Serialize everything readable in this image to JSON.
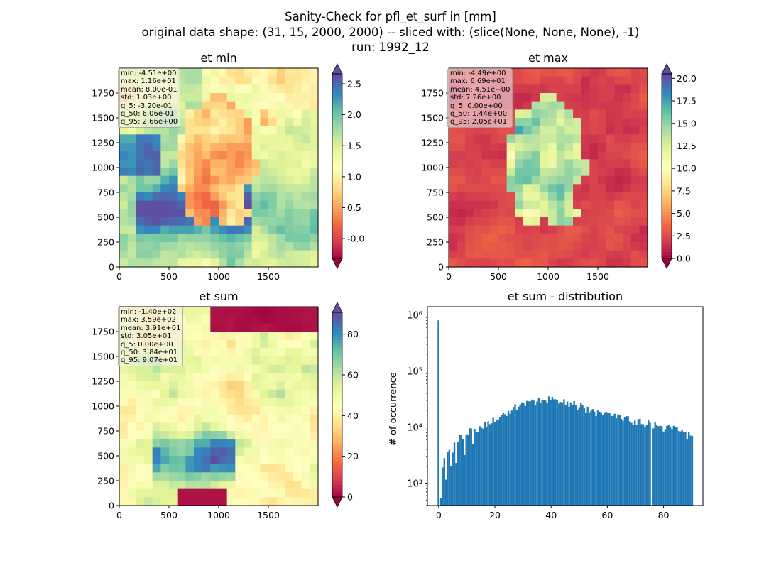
{
  "figure": {
    "title_line1": "Sanity-Check for pfl_et_surf in [mm]",
    "title_line2": "original data shape: (31, 15, 2000, 2000) -- sliced with: (slice(None, None, None), -1)",
    "title_line3": "run: 1992_12"
  },
  "panels": {
    "et_min": {
      "title": "et min",
      "stats": [
        "min: -4.51e+00",
        "max: 1.16e+01",
        "mean: 8.00e-01",
        "std: 1.03e+00",
        "q_5: -3.20e-01",
        "q_50: 6.06e-01",
        "q_95: 2.66e+00"
      ]
    },
    "et_max": {
      "title": "et max",
      "stats": [
        "min: -4.49e+00",
        "max: 6.69e+01",
        "mean: 4.51e+00",
        "std: 7.26e+00",
        "q_5: 0.00e+00",
        "q_50: 1.44e+00",
        "q_95: 2.05e+01"
      ]
    },
    "et_sum": {
      "title": "et sum",
      "stats": [
        "min: -1.40e+02",
        "max: 3.59e+02",
        "mean: 3.91e+01",
        "std: 3.05e+01",
        "q_5: 0.00e+00",
        "q_50: 3.84e+01",
        "q_95: 9.07e+01"
      ]
    },
    "hist": {
      "title": "et sum - distribution",
      "ylabel": "# of occurrence"
    }
  },
  "chart_data": [
    {
      "type": "heatmap",
      "title": "et min",
      "xlim": [
        0,
        2000
      ],
      "ylim": [
        0,
        2000
      ],
      "x_ticks": [
        0,
        500,
        1000,
        1500
      ],
      "y_ticks": [
        0,
        250,
        500,
        750,
        1000,
        1250,
        1500,
        1750
      ],
      "colormap": "Spectral",
      "colorbar": {
        "vmin": -0.32,
        "vmax": 2.66,
        "ticks": [
          "-0.0",
          "0.5",
          "1.0",
          "1.5",
          "2.0",
          "2.5"
        ],
        "tick_values": [
          0,
          0.5,
          1.0,
          1.5,
          2.0,
          2.5
        ],
        "extend": "both"
      }
    },
    {
      "type": "heatmap",
      "title": "et max",
      "xlim": [
        0,
        2000
      ],
      "ylim": [
        0,
        2000
      ],
      "x_ticks": [
        0,
        500,
        1000,
        1500
      ],
      "y_ticks": [
        0,
        250,
        500,
        750,
        1000,
        1250,
        1500,
        1750
      ],
      "colormap": "Spectral",
      "colorbar": {
        "vmin": 0.0,
        "vmax": 20.5,
        "ticks": [
          "0.0",
          "2.5",
          "5.0",
          "7.5",
          "10.0",
          "12.5",
          "15.0",
          "17.5",
          "20.0"
        ],
        "tick_values": [
          0,
          2.5,
          5.0,
          7.5,
          10.0,
          12.5,
          15.0,
          17.5,
          20.0
        ],
        "extend": "both"
      }
    },
    {
      "type": "heatmap",
      "title": "et sum",
      "xlim": [
        0,
        2000
      ],
      "ylim": [
        0,
        2000
      ],
      "x_ticks": [
        0,
        500,
        1000,
        1500
      ],
      "y_ticks": [
        0,
        250,
        500,
        750,
        1000,
        1250,
        1500,
        1750
      ],
      "colormap": "Spectral",
      "colorbar": {
        "vmin": 0.0,
        "vmax": 90.7,
        "ticks": [
          "0",
          "20",
          "40",
          "60",
          "80"
        ],
        "tick_values": [
          0,
          20,
          40,
          60,
          80
        ],
        "extend": "both"
      }
    },
    {
      "type": "bar",
      "title": "et sum - distribution",
      "ylabel": "# of occurrence",
      "yscale": "log",
      "xlim": [
        -4,
        94
      ],
      "ylim": [
        400,
        1400000
      ],
      "x_ticks": [
        0,
        20,
        40,
        60,
        80
      ],
      "y_ticks": [
        1000,
        10000,
        100000,
        1000000
      ],
      "y_tick_labels": [
        "10³",
        "10⁴",
        "10⁵",
        "10⁶"
      ],
      "bin_width": 0.6,
      "color": "#1f77b4",
      "spike": {
        "x": 0,
        "value": 800000
      },
      "profile_points": [
        [
          0.5,
          700
        ],
        [
          1,
          1200
        ],
        [
          2,
          2100
        ],
        [
          3,
          2800
        ],
        [
          4,
          3300
        ],
        [
          5,
          3800
        ],
        [
          6,
          4400
        ],
        [
          8,
          5300
        ],
        [
          10,
          6400
        ],
        [
          12,
          7600
        ],
        [
          15,
          10000
        ],
        [
          18,
          13000
        ],
        [
          21,
          16000
        ],
        [
          25,
          20000
        ],
        [
          30,
          25000
        ],
        [
          35,
          29000
        ],
        [
          38,
          30500
        ],
        [
          40,
          29500
        ],
        [
          45,
          27000
        ],
        [
          50,
          23500
        ],
        [
          55,
          19500
        ],
        [
          60,
          16500
        ],
        [
          65,
          14500
        ],
        [
          70,
          12500
        ],
        [
          75,
          11500
        ],
        [
          80,
          10000
        ],
        [
          85,
          8600
        ],
        [
          88,
          7500
        ],
        [
          90,
          6000
        ]
      ],
      "gap_at": 75.5
    }
  ],
  "colors": {
    "accent": "#1f77b4",
    "spectral": [
      "#9e0142",
      "#d53e4f",
      "#f46d43",
      "#fdae61",
      "#fee08b",
      "#ffffbf",
      "#e6f598",
      "#abdda4",
      "#66c2a5",
      "#3288bd",
      "#5e4fa2"
    ]
  }
}
